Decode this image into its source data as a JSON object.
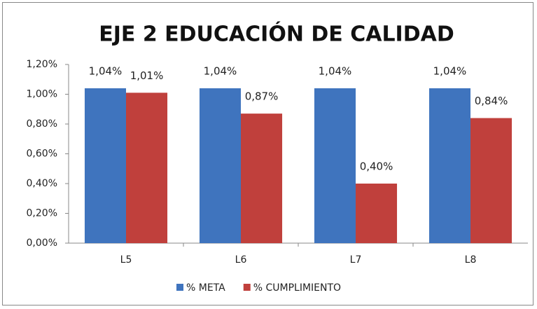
{
  "chart_data": {
    "type": "bar",
    "title": "EJE 2 EDUCACIÓN DE CALIDAD",
    "categories": [
      "L5",
      "L6",
      "L7",
      "L8"
    ],
    "series": [
      {
        "name": "% META",
        "color": "#3f74be",
        "values": [
          1.04,
          1.04,
          1.04,
          1.04
        ],
        "value_labels": [
          "1,04%",
          "1,04%",
          "1,04%",
          "1,04%"
        ]
      },
      {
        "name": "% CUMPLIMIENTO",
        "color": "#c0403c",
        "values": [
          1.01,
          0.87,
          0.4,
          0.84
        ],
        "value_labels": [
          "1,01%",
          "0,87%",
          "0,40%",
          "0,84%"
        ]
      }
    ],
    "ylim": [
      0,
      1.2
    ],
    "yticks": [
      {
        "value": 0,
        "label": "0,00%"
      },
      {
        "value": 0.2,
        "label": "0,20%"
      },
      {
        "value": 0.4,
        "label": "0,40%"
      },
      {
        "value": 0.6,
        "label": "0,60%"
      },
      {
        "value": 0.8,
        "label": "0,80%"
      },
      {
        "value": 1.0,
        "label": "1,00%"
      },
      {
        "value": 1.2,
        "label": "1,20%"
      }
    ],
    "legend": "bottom"
  }
}
